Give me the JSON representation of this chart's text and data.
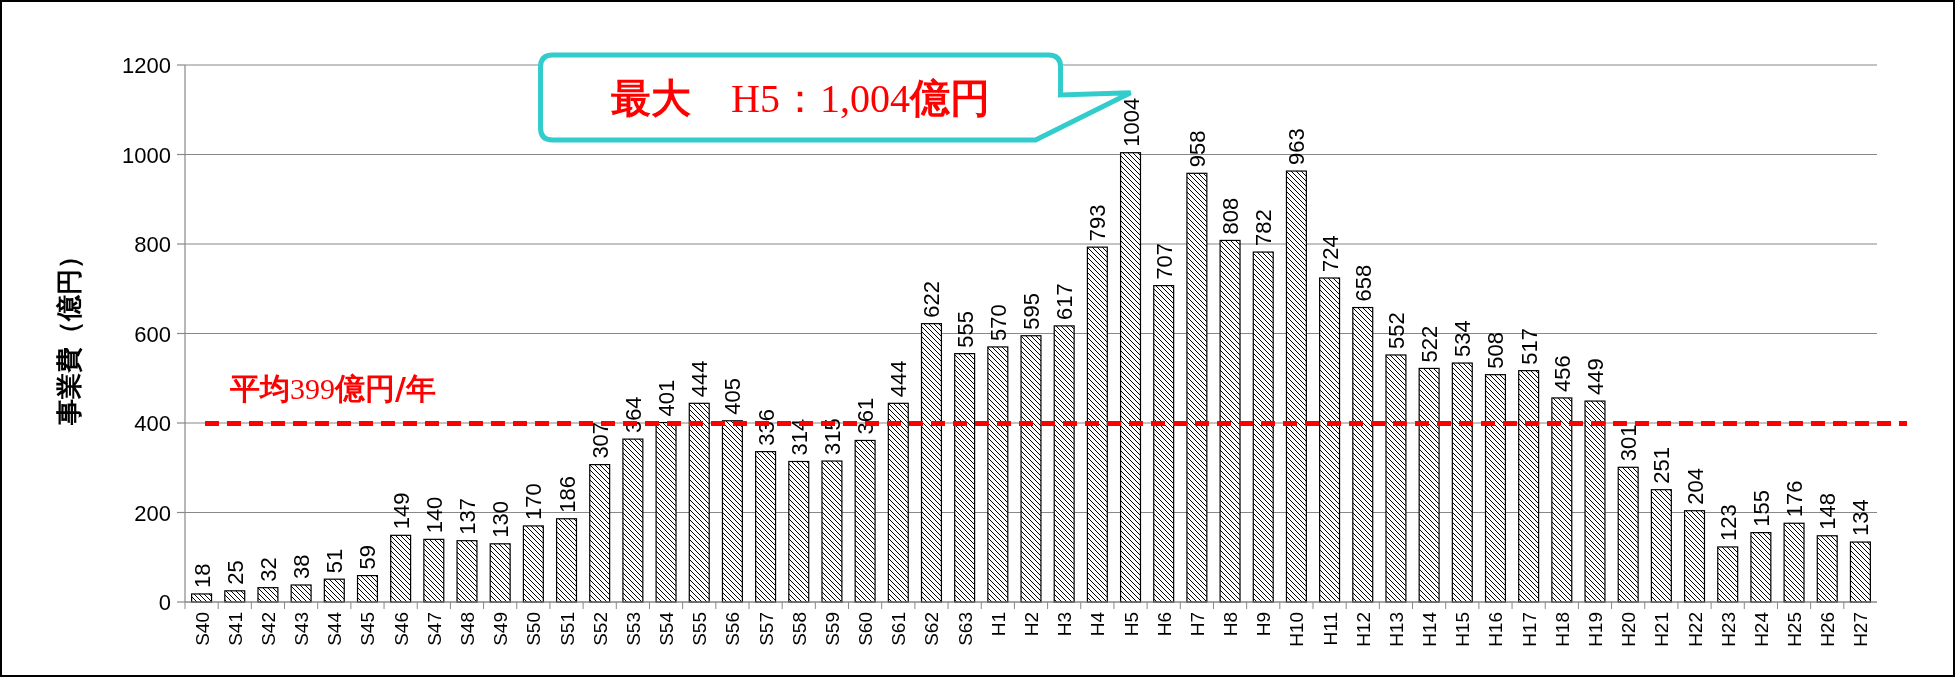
{
  "chart_data": {
    "type": "bar",
    "ylabel": "事業費（億円）",
    "categories": [
      "S40",
      "S41",
      "S42",
      "S43",
      "S44",
      "S45",
      "S46",
      "S47",
      "S48",
      "S49",
      "S50",
      "S51",
      "S52",
      "S53",
      "S54",
      "S55",
      "S56",
      "S57",
      "S58",
      "S59",
      "S60",
      "S61",
      "S62",
      "S63",
      "H1",
      "H2",
      "H3",
      "H4",
      "H5",
      "H6",
      "H7",
      "H8",
      "H9",
      "H10",
      "H11",
      "H12",
      "H13",
      "H14",
      "H15",
      "H16",
      "H17",
      "H18",
      "H19",
      "H20",
      "H21",
      "H22",
      "H23",
      "H24",
      "H25",
      "H26",
      "H27"
    ],
    "values": [
      18,
      25,
      32,
      38,
      51,
      59,
      149,
      140,
      137,
      130,
      170,
      186,
      307,
      364,
      401,
      444,
      405,
      336,
      314,
      315,
      361,
      444,
      622,
      555,
      570,
      595,
      617,
      793,
      1004,
      707,
      958,
      808,
      782,
      963,
      724,
      658,
      552,
      522,
      534,
      508,
      517,
      456,
      449,
      301,
      251,
      204,
      123,
      155,
      176,
      148,
      134
    ],
    "color": "#000000",
    "data_labels": true,
    "grid": "y",
    "ylim": [
      0,
      1200
    ],
    "yticks": [
      0,
      200,
      400,
      600,
      800,
      1000,
      1200
    ],
    "ref_lines": [
      {
        "axis": "y",
        "value": 399,
        "label": "**平均**399**億円/年**",
        "color": "#ff0000",
        "line_style": "dashed"
      }
    ],
    "annotations": [
      "**最大**　H5：1,004**億円**"
    ]
  }
}
